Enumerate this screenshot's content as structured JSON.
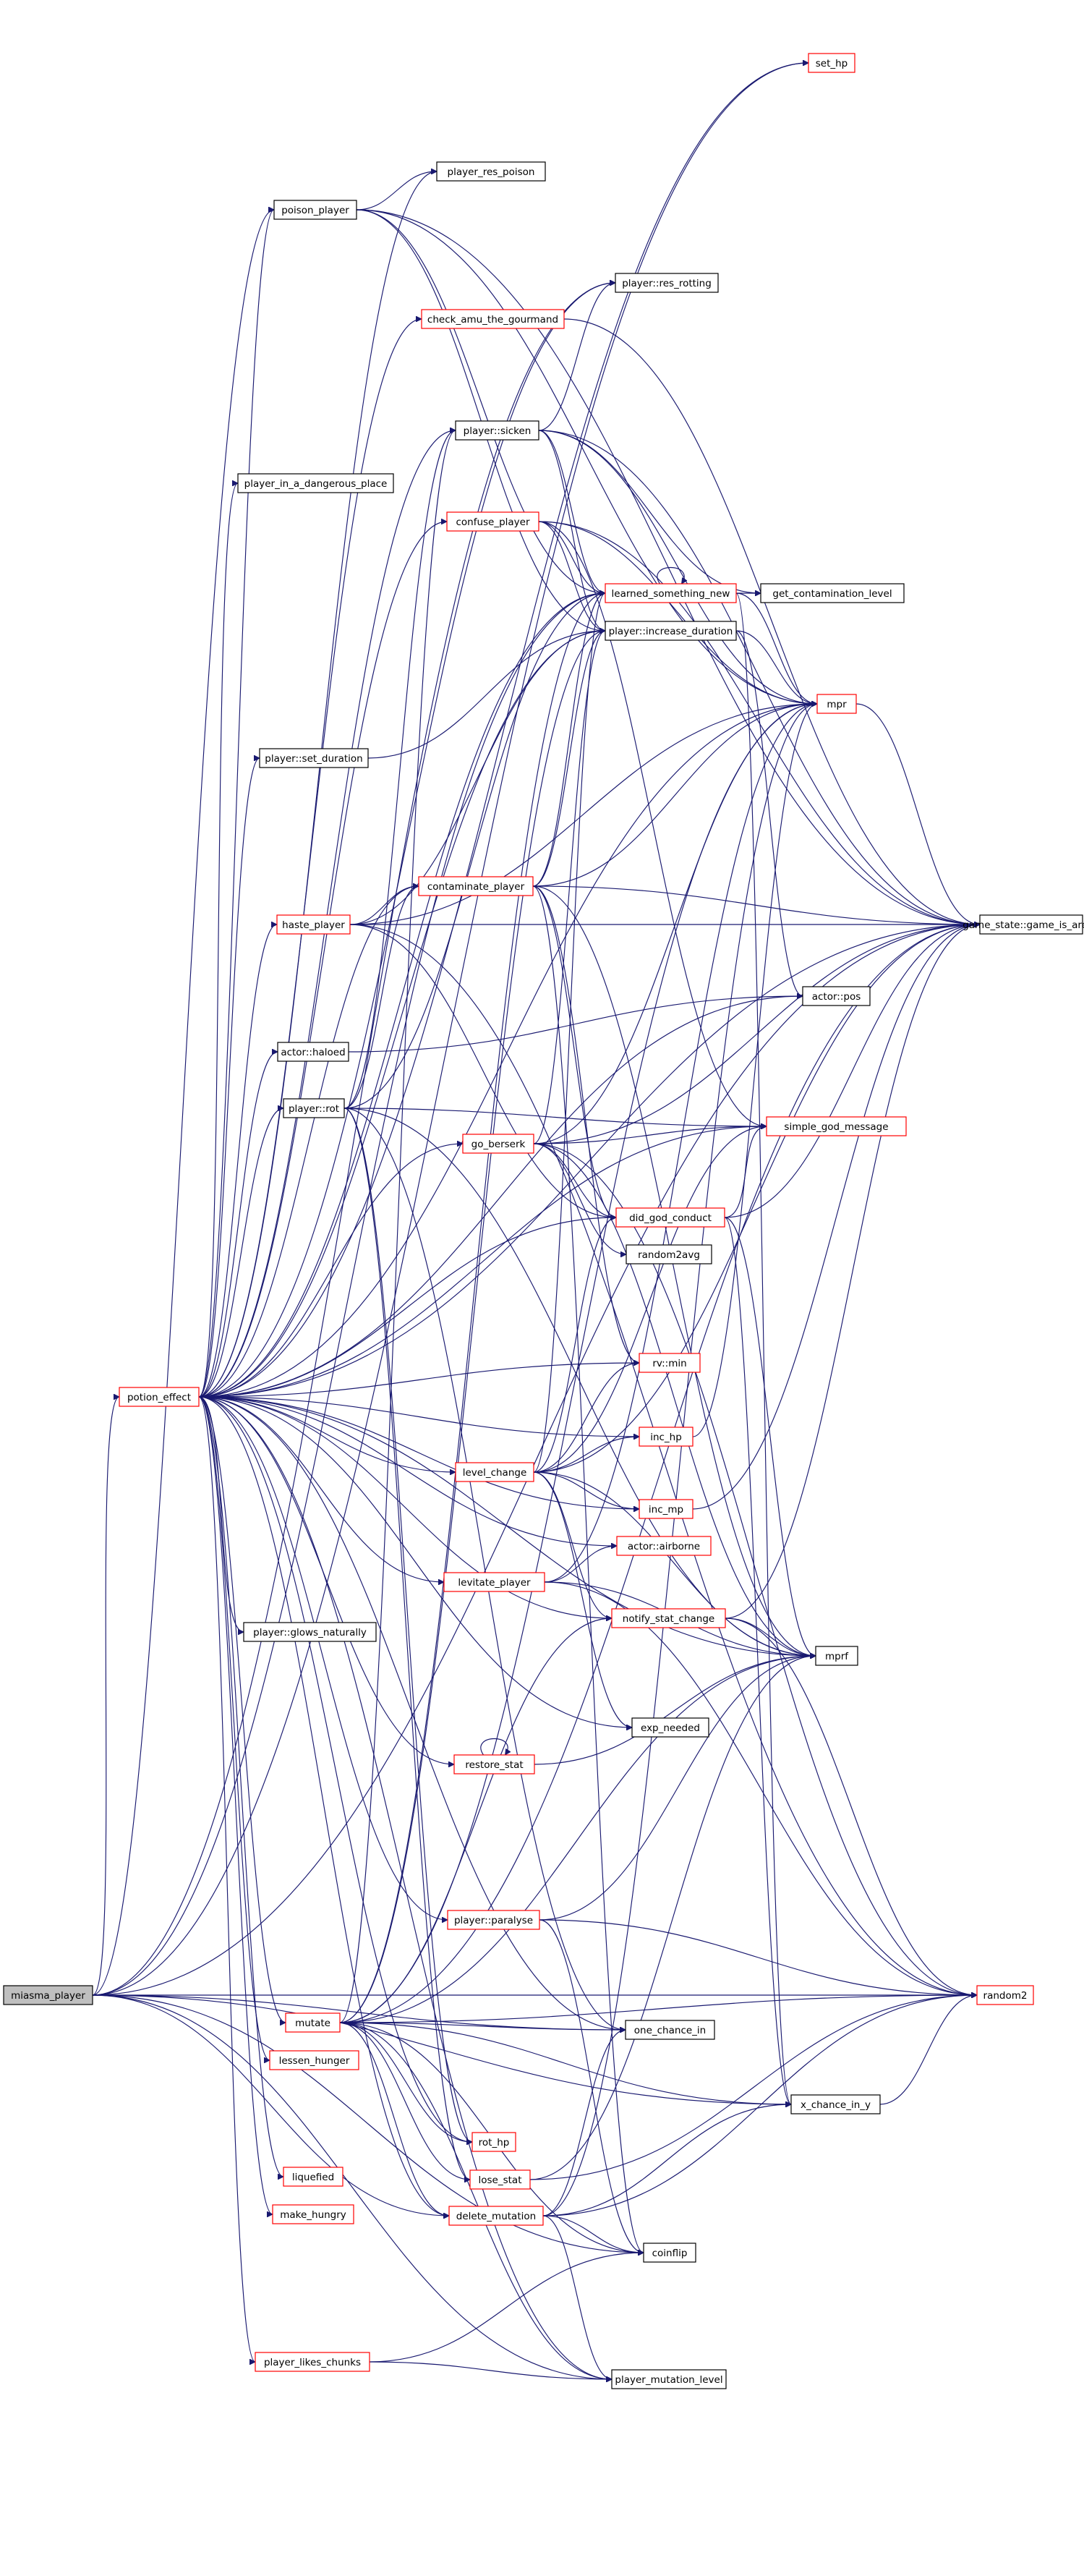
{
  "diagram": {
    "type": "call-graph",
    "root": "miasma_player",
    "colors": {
      "edge": "#191970",
      "root_fill": "#bfbfbf",
      "documented_border": "#000000",
      "undocumented_border": "#ff0000"
    },
    "nodes": [
      {
        "id": "miasma_player",
        "label": "miasma_player",
        "style": "root"
      },
      {
        "id": "set_hp",
        "label": "set_hp",
        "style": "red"
      },
      {
        "id": "player_res_poison",
        "label": "player_res_poison",
        "style": "plain"
      },
      {
        "id": "poison_player",
        "label": "poison_player",
        "style": "plain"
      },
      {
        "id": "res_rotting",
        "label": "player::res_rotting",
        "style": "plain"
      },
      {
        "id": "check_amu",
        "label": "check_amu_the_gourmand",
        "style": "red"
      },
      {
        "id": "sicken",
        "label": "player::sicken",
        "style": "plain"
      },
      {
        "id": "dangerous_place",
        "label": "player_in_a_dangerous_place",
        "style": "plain"
      },
      {
        "id": "confuse_player",
        "label": "confuse_player",
        "style": "red"
      },
      {
        "id": "learned",
        "label": "learned_something_new",
        "style": "red"
      },
      {
        "id": "get_contam",
        "label": "get_contamination_level",
        "style": "plain"
      },
      {
        "id": "increase_duration",
        "label": "player::increase_duration",
        "style": "plain"
      },
      {
        "id": "mpr",
        "label": "mpr",
        "style": "red"
      },
      {
        "id": "set_duration",
        "label": "player::set_duration",
        "style": "plain"
      },
      {
        "id": "contaminate",
        "label": "contaminate_player",
        "style": "red"
      },
      {
        "id": "haste_player",
        "label": "haste_player",
        "style": "red"
      },
      {
        "id": "game_is_arena",
        "label": "game_state::game_is_arena",
        "style": "plain"
      },
      {
        "id": "actor_pos",
        "label": "actor::pos",
        "style": "plain"
      },
      {
        "id": "haloed",
        "label": "actor::haloed",
        "style": "plain"
      },
      {
        "id": "player_rot",
        "label": "player::rot",
        "style": "plain"
      },
      {
        "id": "go_berserk",
        "label": "go_berserk",
        "style": "red"
      },
      {
        "id": "god_message",
        "label": "simple_god_message",
        "style": "red"
      },
      {
        "id": "did_god_conduct",
        "label": "did_god_conduct",
        "style": "red"
      },
      {
        "id": "random2avg",
        "label": "random2avg",
        "style": "plain"
      },
      {
        "id": "potion_effect",
        "label": "potion_effect",
        "style": "red"
      },
      {
        "id": "rv_min",
        "label": "rv::min",
        "style": "red"
      },
      {
        "id": "inc_hp",
        "label": "inc_hp",
        "style": "red"
      },
      {
        "id": "level_change",
        "label": "level_change",
        "style": "red"
      },
      {
        "id": "inc_mp",
        "label": "inc_mp",
        "style": "red"
      },
      {
        "id": "airborne",
        "label": "actor::airborne",
        "style": "red"
      },
      {
        "id": "levitate",
        "label": "levitate_player",
        "style": "red"
      },
      {
        "id": "notify_stat",
        "label": "notify_stat_change",
        "style": "red"
      },
      {
        "id": "mprf",
        "label": "mprf",
        "style": "plain"
      },
      {
        "id": "glows",
        "label": "player::glows_naturally",
        "style": "plain"
      },
      {
        "id": "exp_needed",
        "label": "exp_needed",
        "style": "plain"
      },
      {
        "id": "restore_stat",
        "label": "restore_stat",
        "style": "red"
      },
      {
        "id": "paralyse",
        "label": "player::paralyse",
        "style": "red"
      },
      {
        "id": "random2",
        "label": "random2",
        "style": "red"
      },
      {
        "id": "mutate",
        "label": "mutate",
        "style": "red"
      },
      {
        "id": "one_chance",
        "label": "one_chance_in",
        "style": "plain"
      },
      {
        "id": "lessen_hunger",
        "label": "lessen_hunger",
        "style": "red"
      },
      {
        "id": "x_chance",
        "label": "x_chance_in_y",
        "style": "plain"
      },
      {
        "id": "rot_hp",
        "label": "rot_hp",
        "style": "red"
      },
      {
        "id": "liquefied",
        "label": "liquefied",
        "style": "red"
      },
      {
        "id": "lose_stat",
        "label": "lose_stat",
        "style": "red"
      },
      {
        "id": "make_hungry",
        "label": "make_hungry",
        "style": "red"
      },
      {
        "id": "delete_mutation",
        "label": "delete_mutation",
        "style": "red"
      },
      {
        "id": "coinflip",
        "label": "coinflip",
        "style": "plain"
      },
      {
        "id": "likes_chunks",
        "label": "player_likes_chunks",
        "style": "red"
      },
      {
        "id": "mutation_level",
        "label": "player_mutation_level",
        "style": "plain"
      }
    ],
    "edges": [
      [
        "miasma_player",
        "potion_effect"
      ],
      [
        "miasma_player",
        "poison_player"
      ],
      [
        "miasma_player",
        "set_hp"
      ],
      [
        "miasma_player",
        "one_chance"
      ],
      [
        "miasma_player",
        "random2"
      ],
      [
        "miasma_player",
        "coinflip"
      ],
      [
        "miasma_player",
        "x_chance"
      ],
      [
        "miasma_player",
        "delete_mutation"
      ],
      [
        "miasma_player",
        "mutation_level"
      ],
      [
        "miasma_player",
        "game_is_arena"
      ],
      [
        "miasma_player",
        "res_rotting"
      ],
      [
        "miasma_player",
        "learned"
      ],
      [
        "poison_player",
        "player_res_poison"
      ],
      [
        "poison_player",
        "game_is_arena"
      ],
      [
        "poison_player",
        "increase_duration"
      ],
      [
        "poison_player",
        "mpr"
      ],
      [
        "poison_player",
        "learned"
      ],
      [
        "potion_effect",
        "poison_player"
      ],
      [
        "potion_effect",
        "player_res_poison"
      ],
      [
        "potion_effect",
        "check_amu"
      ],
      [
        "potion_effect",
        "sicken"
      ],
      [
        "potion_effect",
        "dangerous_place"
      ],
      [
        "potion_effect",
        "confuse_player"
      ],
      [
        "potion_effect",
        "learned"
      ],
      [
        "potion_effect",
        "increase_duration"
      ],
      [
        "potion_effect",
        "set_duration"
      ],
      [
        "potion_effect",
        "contaminate"
      ],
      [
        "potion_effect",
        "haste_player"
      ],
      [
        "potion_effect",
        "actor_pos"
      ],
      [
        "potion_effect",
        "haloed"
      ],
      [
        "potion_effect",
        "player_rot"
      ],
      [
        "potion_effect",
        "go_berserk"
      ],
      [
        "potion_effect",
        "did_god_conduct"
      ],
      [
        "potion_effect",
        "rv_min"
      ],
      [
        "potion_effect",
        "inc_hp"
      ],
      [
        "potion_effect",
        "level_change"
      ],
      [
        "potion_effect",
        "inc_mp"
      ],
      [
        "potion_effect",
        "airborne"
      ],
      [
        "potion_effect",
        "levitate"
      ],
      [
        "potion_effect",
        "glows"
      ],
      [
        "potion_effect",
        "mprf"
      ],
      [
        "potion_effect",
        "exp_needed"
      ],
      [
        "potion_effect",
        "restore_stat"
      ],
      [
        "potion_effect",
        "paralyse"
      ],
      [
        "potion_effect",
        "mutate"
      ],
      [
        "potion_effect",
        "lessen_hunger"
      ],
      [
        "potion_effect",
        "rot_hp"
      ],
      [
        "potion_effect",
        "liquefied"
      ],
      [
        "potion_effect",
        "make_hungry"
      ],
      [
        "potion_effect",
        "likes_chunks"
      ],
      [
        "potion_effect",
        "mpr"
      ],
      [
        "potion_effect",
        "game_is_arena"
      ],
      [
        "potion_effect",
        "god_message"
      ],
      [
        "potion_effect",
        "notify_stat"
      ],
      [
        "potion_effect",
        "one_chance"
      ],
      [
        "potion_effect",
        "delete_mutation"
      ],
      [
        "potion_effect",
        "mutation_level"
      ],
      [
        "potion_effect",
        "set_hp"
      ],
      [
        "potion_effect",
        "res_rotting"
      ],
      [
        "check_amu",
        "game_is_arena"
      ],
      [
        "sicken",
        "res_rotting"
      ],
      [
        "sicken",
        "learned"
      ],
      [
        "sicken",
        "mpr"
      ],
      [
        "sicken",
        "game_is_arena"
      ],
      [
        "sicken",
        "increase_duration"
      ],
      [
        "sicken",
        "get_contam"
      ],
      [
        "confuse_player",
        "learned"
      ],
      [
        "confuse_player",
        "increase_duration"
      ],
      [
        "confuse_player",
        "mpr"
      ],
      [
        "confuse_player",
        "game_is_arena"
      ],
      [
        "confuse_player",
        "god_message"
      ],
      [
        "learned",
        "learned"
      ],
      [
        "learned",
        "get_contam"
      ],
      [
        "learned",
        "mpr"
      ],
      [
        "learned",
        "x_chance"
      ],
      [
        "increase_duration",
        "mpr"
      ],
      [
        "increase_duration",
        "actor_pos"
      ],
      [
        "mpr",
        "game_is_arena"
      ],
      [
        "set_duration",
        "increase_duration"
      ],
      [
        "contaminate",
        "learned"
      ],
      [
        "contaminate",
        "increase_duration"
      ],
      [
        "contaminate",
        "mpr"
      ],
      [
        "contaminate",
        "game_is_arena"
      ],
      [
        "contaminate",
        "did_god_conduct"
      ],
      [
        "contaminate",
        "mprf"
      ],
      [
        "contaminate",
        "rv_min"
      ],
      [
        "contaminate",
        "coinflip"
      ],
      [
        "haste_player",
        "contaminate"
      ],
      [
        "haste_player",
        "increase_duration"
      ],
      [
        "haste_player",
        "game_is_arena"
      ],
      [
        "haste_player",
        "mpr"
      ],
      [
        "haste_player",
        "did_god_conduct"
      ],
      [
        "haste_player",
        "random2"
      ],
      [
        "haloed",
        "actor_pos"
      ],
      [
        "player_rot",
        "sicken"
      ],
      [
        "player_rot",
        "learned"
      ],
      [
        "player_rot",
        "god_message"
      ],
      [
        "player_rot",
        "mprf"
      ],
      [
        "player_rot",
        "rot_hp"
      ],
      [
        "player_rot",
        "lose_stat"
      ],
      [
        "player_rot",
        "one_chance"
      ],
      [
        "player_rot",
        "contaminate"
      ],
      [
        "go_berserk",
        "mpr"
      ],
      [
        "go_berserk",
        "god_message"
      ],
      [
        "go_berserk",
        "did_god_conduct"
      ],
      [
        "go_berserk",
        "random2avg"
      ],
      [
        "go_berserk",
        "game_is_arena"
      ],
      [
        "go_berserk",
        "increase_duration"
      ],
      [
        "go_berserk",
        "mprf"
      ],
      [
        "go_berserk",
        "random2"
      ],
      [
        "did_god_conduct",
        "god_message"
      ],
      [
        "did_god_conduct",
        "game_is_arena"
      ],
      [
        "did_god_conduct",
        "mprf"
      ],
      [
        "did_god_conduct",
        "x_chance"
      ],
      [
        "level_change",
        "inc_hp"
      ],
      [
        "level_change",
        "inc_mp"
      ],
      [
        "level_change",
        "rv_min"
      ],
      [
        "level_change",
        "mprf"
      ],
      [
        "level_change",
        "exp_needed"
      ],
      [
        "level_change",
        "did_god_conduct"
      ],
      [
        "level_change",
        "learned"
      ],
      [
        "level_change",
        "game_is_arena"
      ],
      [
        "level_change",
        "notify_stat"
      ],
      [
        "level_change",
        "god_message"
      ],
      [
        "inc_hp",
        "mpr"
      ],
      [
        "inc_mp",
        "game_is_arena"
      ],
      [
        "levitate",
        "airborne"
      ],
      [
        "levitate",
        "mprf"
      ],
      [
        "levitate",
        "mpr"
      ],
      [
        "levitate",
        "random2"
      ],
      [
        "notify_stat",
        "mprf"
      ],
      [
        "notify_stat",
        "game_is_arena"
      ],
      [
        "notify_stat",
        "random2"
      ],
      [
        "restore_stat",
        "restore_stat"
      ],
      [
        "restore_stat",
        "mprf"
      ],
      [
        "paralyse",
        "mprf"
      ],
      [
        "paralyse",
        "random2"
      ],
      [
        "paralyse",
        "coinflip"
      ],
      [
        "mutate",
        "one_chance"
      ],
      [
        "mutate",
        "x_chance"
      ],
      [
        "mutate",
        "rot_hp"
      ],
      [
        "mutate",
        "lose_stat"
      ],
      [
        "mutate",
        "delete_mutation"
      ],
      [
        "mutate",
        "coinflip"
      ],
      [
        "mutate",
        "mutation_level"
      ],
      [
        "mutate",
        "random2"
      ],
      [
        "mutate",
        "mprf"
      ],
      [
        "mutate",
        "mpr"
      ],
      [
        "mutate",
        "notify_stat"
      ],
      [
        "mutate",
        "learned"
      ],
      [
        "mutate",
        "game_is_arena"
      ],
      [
        "mutate",
        "sicken"
      ],
      [
        "mutate",
        "increase_duration"
      ],
      [
        "x_chance",
        "random2"
      ],
      [
        "lose_stat",
        "mprf"
      ],
      [
        "lose_stat",
        "random2"
      ],
      [
        "delete_mutation",
        "one_chance"
      ],
      [
        "delete_mutation",
        "coinflip"
      ],
      [
        "delete_mutation",
        "mutation_level"
      ],
      [
        "delete_mutation",
        "random2"
      ],
      [
        "delete_mutation",
        "mpr"
      ],
      [
        "delete_mutation",
        "x_chance"
      ],
      [
        "likes_chunks",
        "mutation_level"
      ],
      [
        "likes_chunks",
        "coinflip"
      ]
    ]
  }
}
